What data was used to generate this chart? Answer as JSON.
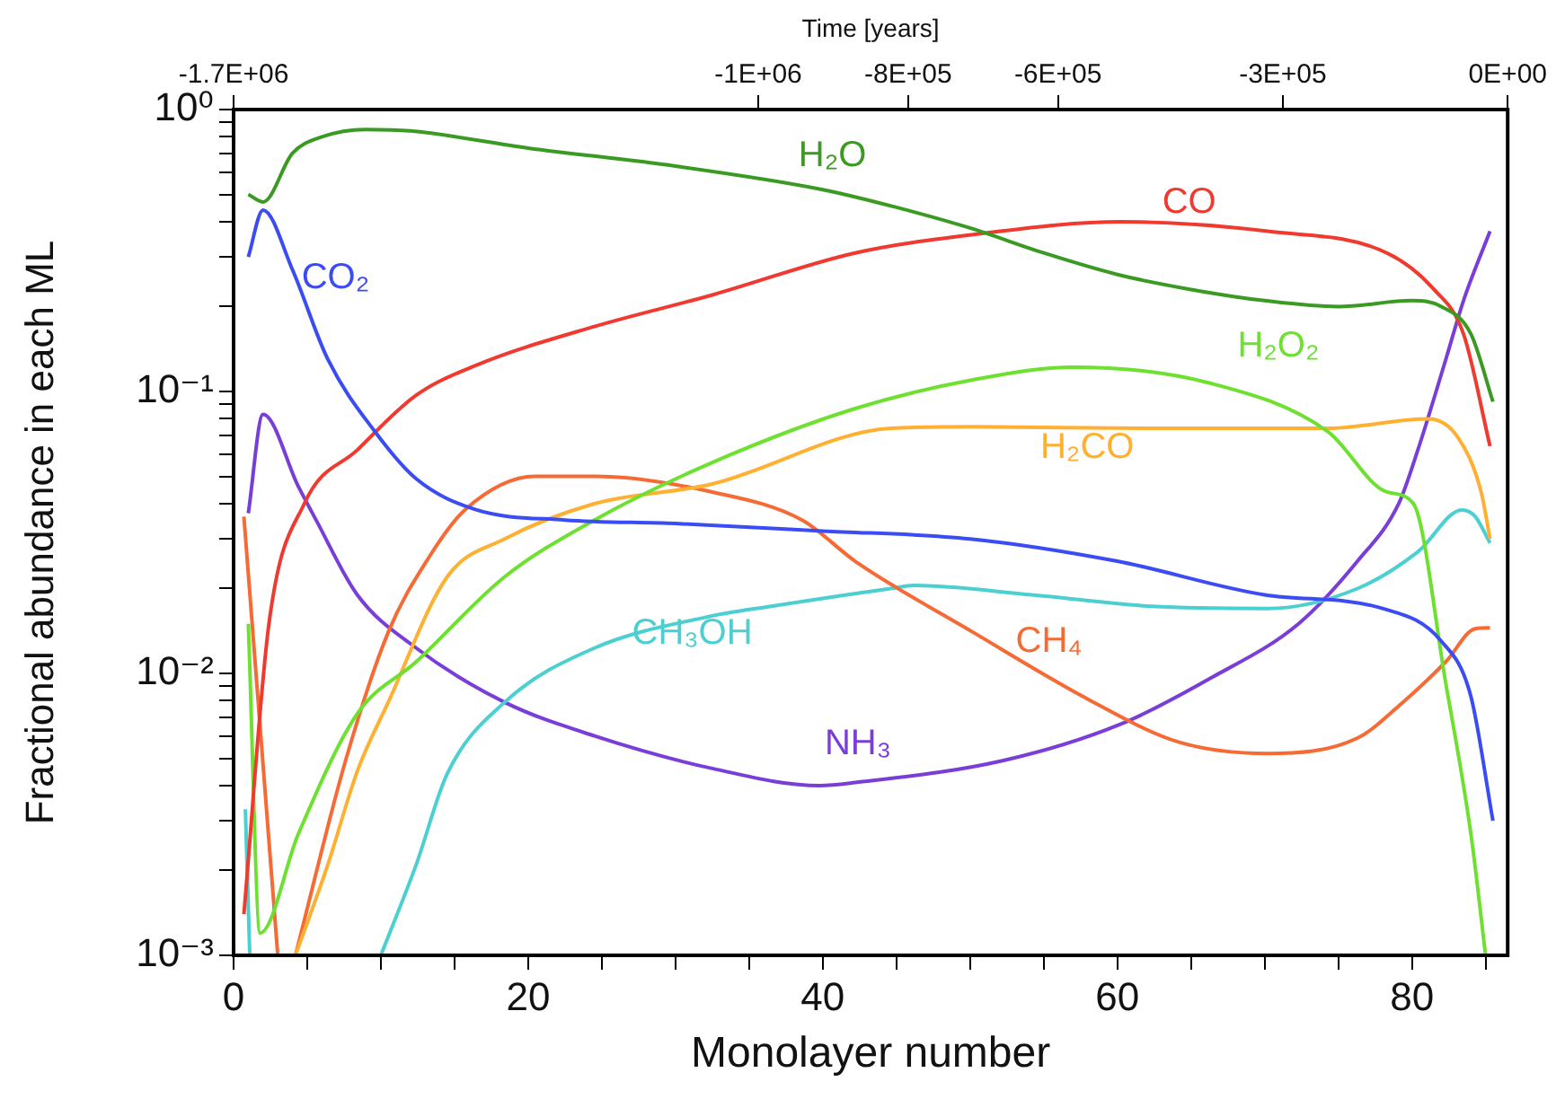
{
  "chart_data": {
    "type": "line",
    "xlabel": "Monolayer number",
    "ylabel": "Fractional abundance in each ML",
    "x2label": "Time [years]",
    "log": "y",
    "grid": false,
    "legend": false,
    "marker": "none",
    "line_style": "solid",
    "xlim": [
      0,
      86.5
    ],
    "xticks": [
      0,
      {
        "value": 5,
        "label": null
      },
      {
        "value": 10,
        "label": null
      },
      {
        "value": 15,
        "label": null
      },
      20,
      {
        "value": 25,
        "label": null
      },
      {
        "value": 30,
        "label": null
      },
      {
        "value": 35,
        "label": null
      },
      40,
      {
        "value": 45,
        "label": null
      },
      {
        "value": 50,
        "label": null
      },
      {
        "value": 55,
        "label": null
      },
      60,
      {
        "value": 65,
        "label": null
      },
      {
        "value": 70,
        "label": null
      },
      {
        "value": 75,
        "label": null
      },
      80,
      {
        "value": 85,
        "label": null
      }
    ],
    "x2lim": [
      -1700000,
      0
    ],
    "x2ticks": [
      {
        "value": -1700000,
        "label": "-1.7E+06"
      },
      {
        "value": -1000000,
        "label": "-1E+06"
      },
      {
        "value": -800000,
        "label": "-8E+05"
      },
      {
        "value": -600000,
        "label": "-6E+05"
      },
      {
        "value": -300000,
        "label": "-3E+05"
      },
      {
        "value": 0,
        "label": "0E+00"
      }
    ],
    "ylim": [
      0.001,
      1
    ],
    "yticks": [
      {
        "value": 0.001,
        "label": "10⁻³"
      },
      {
        "value": 0.002,
        "label": null
      },
      {
        "value": 0.003,
        "label": null
      },
      {
        "value": 0.004,
        "label": null
      },
      {
        "value": 0.005,
        "label": null
      },
      {
        "value": 0.006,
        "label": null
      },
      {
        "value": 0.007,
        "label": null
      },
      {
        "value": 0.008,
        "label": null
      },
      {
        "value": 0.009,
        "label": null
      },
      {
        "value": 0.01,
        "label": "10⁻²"
      },
      {
        "value": 0.02,
        "label": null
      },
      {
        "value": 0.03,
        "label": null
      },
      {
        "value": 0.04,
        "label": null
      },
      {
        "value": 0.05,
        "label": null
      },
      {
        "value": 0.06,
        "label": null
      },
      {
        "value": 0.07,
        "label": null
      },
      {
        "value": 0.08,
        "label": null
      },
      {
        "value": 0.09,
        "label": null
      },
      {
        "value": 0.1,
        "label": "10⁻¹"
      },
      {
        "value": 0.2,
        "label": null
      },
      {
        "value": 0.3,
        "label": null
      },
      {
        "value": 0.4,
        "label": null
      },
      {
        "value": 0.5,
        "label": null
      },
      {
        "value": 0.6,
        "label": null
      },
      {
        "value": 0.7,
        "label": null
      },
      {
        "value": 0.8,
        "label": null
      },
      {
        "value": 0.9,
        "label": null
      },
      {
        "value": 1,
        "label": "10⁰"
      }
    ],
    "series": [
      {
        "name": "H₂O",
        "color": "#3a9a22",
        "x": [
          1,
          2,
          4,
          6,
          9,
          12,
          20,
          30,
          40,
          45,
          50,
          55,
          60,
          65,
          70,
          75,
          80,
          82,
          84,
          85.5
        ],
        "values": [
          0.5,
          0.47,
          0.7,
          0.8,
          0.85,
          0.84,
          0.73,
          0.63,
          0.52,
          0.45,
          0.38,
          0.31,
          0.26,
          0.23,
          0.21,
          0.2,
          0.21,
          0.2,
          0.16,
          0.092
        ]
      },
      {
        "name": "CO₂",
        "color": "#3c4cf5",
        "x": [
          1,
          2,
          4,
          6.4,
          9.6,
          12.4,
          16.5,
          22.5,
          30,
          40,
          50,
          60,
          70,
          78,
          82,
          84,
          85.5
        ],
        "values": [
          0.3,
          0.44,
          0.27,
          0.13,
          0.072,
          0.049,
          0.038,
          0.035,
          0.034,
          0.032,
          0.03,
          0.025,
          0.019,
          0.017,
          0.013,
          0.0083,
          0.003
        ]
      },
      {
        "name": "CO",
        "color": "#f03a30",
        "x": [
          0.7,
          2.4,
          4.8,
          8.4,
          12.4,
          16.5,
          24.5,
          32.5,
          42.2,
          50.2,
          60.2,
          70.2,
          78.3,
          81.5,
          83.5,
          85.3
        ],
        "values": [
          0.0014,
          0.015,
          0.04,
          0.062,
          0.097,
          0.124,
          0.17,
          0.22,
          0.31,
          0.36,
          0.4,
          0.37,
          0.31,
          0.23,
          0.16,
          0.064
        ]
      },
      {
        "name": "H₂O₂",
        "color": "#6ee030",
        "x": [
          1,
          1.8,
          4.4,
          8.4,
          12.4,
          18.4,
          24.5,
          32.5,
          42.2,
          50.2,
          57,
          66.3,
          74.3,
          78.3,
          80.1,
          82.3,
          84,
          85
        ],
        "values": [
          0.015,
          0.0012,
          0.0027,
          0.0072,
          0.011,
          0.022,
          0.035,
          0.056,
          0.087,
          0.11,
          0.122,
          0.107,
          0.072,
          0.044,
          0.04,
          0.0092,
          0.0027,
          0.001
        ]
      },
      {
        "name": "H₂CO",
        "color": "#ffb030",
        "x": [
          4.2,
          6.4,
          8.4,
          10.5,
          14.5,
          18.4,
          24.5,
          32.5,
          44.6,
          50.2,
          62.3,
          74.3,
          81.1,
          83.1,
          84.7,
          85.3
        ],
        "values": [
          0.001,
          0.0021,
          0.0045,
          0.0079,
          0.022,
          0.03,
          0.04,
          0.047,
          0.074,
          0.075,
          0.074,
          0.074,
          0.08,
          0.069,
          0.044,
          0.03
        ]
      },
      {
        "name": "CH₄",
        "color": "#f56a35",
        "x": [
          0.7,
          3,
          3.6,
          4.2,
          7.6,
          10.5,
          13.3,
          15.7,
          20.5,
          24.5,
          32.5,
          38.6,
          42.2,
          50.2,
          58.2,
          64.2,
          70.2,
          76.3,
          79.5,
          82.3,
          84.3,
          85.3
        ],
        "values": [
          0.036,
          0.001,
          null,
          0.001,
          0.0049,
          0.014,
          0.026,
          0.038,
          0.05,
          0.05,
          0.044,
          0.035,
          0.025,
          0.014,
          0.008,
          0.0057,
          0.0052,
          0.0059,
          0.008,
          0.011,
          0.0144,
          0.0145
        ]
      },
      {
        "name": "CH₃OH",
        "color": "#4ccfd0",
        "x": [
          0.8,
          1.1,
          5,
          10,
          12.4,
          14.5,
          18.4,
          24.5,
          32.5,
          36.5,
          44.6,
          46.2,
          54.2,
          62.3,
          70.2,
          76.3,
          80.4,
          83.4,
          84.3,
          85.3
        ],
        "values": [
          0.0033,
          0.001,
          null,
          0.001,
          0.0021,
          0.0044,
          0.0079,
          0.0123,
          0.016,
          0.0173,
          0.02,
          0.0205,
          0.019,
          0.0173,
          0.017,
          0.02,
          0.027,
          0.038,
          0.036,
          0.029
        ]
      },
      {
        "name": "NH₃",
        "color": "#7a3ed8",
        "x": [
          1,
          2,
          4.4,
          5.6,
          8.4,
          12.4,
          18.4,
          24.5,
          32.5,
          39.8,
          42.2,
          52.2,
          60.2,
          66.3,
          72.3,
          76.3,
          79.1,
          80.4,
          82.3,
          83.5,
          85.3
        ],
        "values": [
          0.037,
          0.083,
          0.046,
          0.035,
          0.019,
          0.0123,
          0.0079,
          0.006,
          0.0046,
          0.004,
          0.0041,
          0.0049,
          0.0066,
          0.0096,
          0.015,
          0.025,
          0.04,
          0.062,
          0.13,
          0.21,
          0.37
        ]
      }
    ]
  }
}
